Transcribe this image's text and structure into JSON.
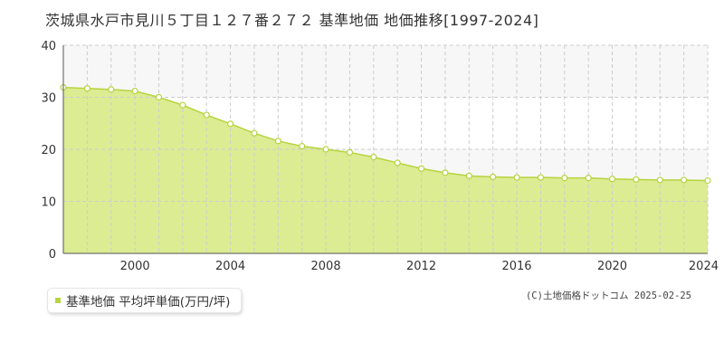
{
  "title": "茨城県水戸市見川５丁目１２７番２７２ 基準地価 地価推移[1997-2024]",
  "legend": {
    "label": "基準地価 平均坪単価(万円/坪)"
  },
  "copyright": "(C)土地価格ドットコム 2025-02-25",
  "colors": {
    "fill": "#dcec93",
    "line": "#b5d43f",
    "marker_fill": "#ffffff",
    "band": "#f7f7f7",
    "grid": "#cccccc",
    "axis": "#555555"
  },
  "chart_data": {
    "type": "area",
    "series": [
      {
        "x": [
          1997,
          1998,
          1999,
          2000,
          2001,
          2002,
          2003,
          2004,
          2005,
          2006,
          2007,
          2008,
          2009,
          2010,
          2011,
          2012,
          2013,
          2014,
          2015,
          2016,
          2017,
          2018,
          2019,
          2020,
          2021,
          2022,
          2023,
          2024
        ],
        "values": [
          31.9,
          31.7,
          31.5,
          31.2,
          30.0,
          28.5,
          26.6,
          24.9,
          23.1,
          21.6,
          20.6,
          20.0,
          19.4,
          18.5,
          17.4,
          16.3,
          15.5,
          14.9,
          14.7,
          14.6,
          14.6,
          14.5,
          14.5,
          14.3,
          14.2,
          14.1,
          14.1,
          14.0
        ]
      }
    ],
    "xlim": [
      1997,
      2024
    ],
    "ylim": [
      0,
      40
    ],
    "xticks": [
      2000,
      2004,
      2008,
      2012,
      2016,
      2020,
      2024
    ],
    "yticks": [
      0,
      10,
      20,
      30,
      40
    ],
    "grid": true,
    "legend_position": "bottom-left"
  }
}
